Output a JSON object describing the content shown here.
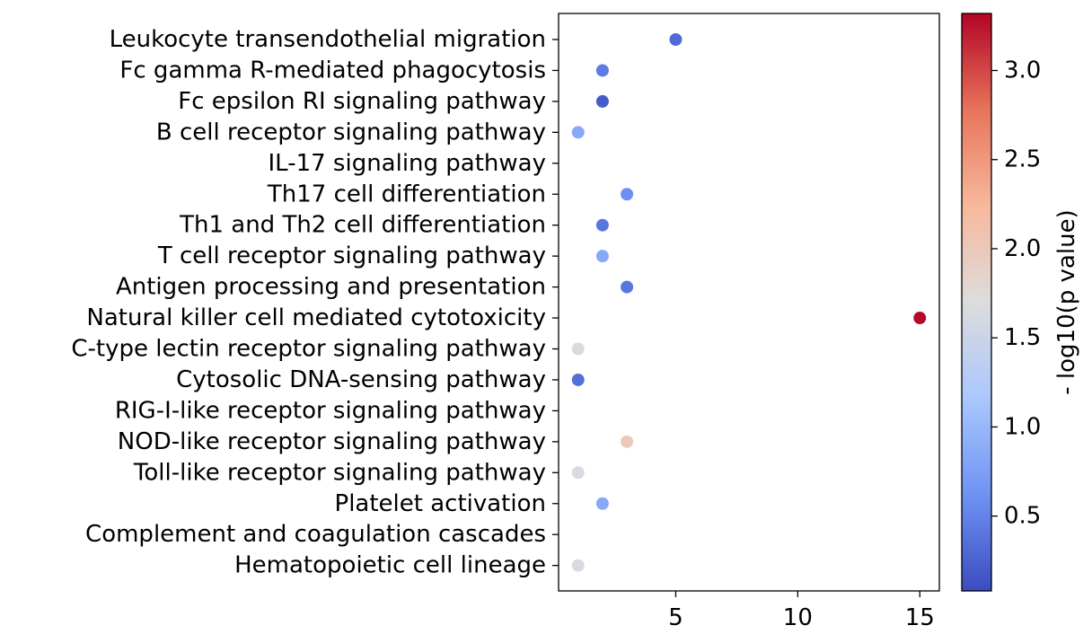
{
  "chart_data": {
    "type": "scatter",
    "title": "",
    "xlabel": "",
    "ylabel": "",
    "xlim": [
      0.2,
      15.8
    ],
    "xticks": [
      5,
      10,
      15
    ],
    "grid": false,
    "categories": [
      "Leukocyte transendothelial migration",
      "Fc gamma R-mediated phagocytosis",
      "Fc epsilon RI signaling pathway",
      "B cell receptor signaling pathway",
      "IL-17 signaling pathway",
      "Th17 cell differentiation",
      "Th1 and Th2 cell differentiation",
      "T cell receptor signaling pathway",
      "Antigen processing and presentation",
      "Natural killer cell mediated cytotoxicity",
      "C-type lectin receptor signaling pathway",
      "Cytosolic DNA-sensing pathway",
      "RIG-I-like receptor signaling pathway",
      "NOD-like receptor signaling pathway",
      "Toll-like receptor signaling pathway",
      "Platelet activation",
      "Complement and coagulation cascades",
      "Hematopoietic cell lineage"
    ],
    "points": [
      {
        "category": "Leukocyte transendothelial migration",
        "x": 5,
        "neg_log10_p": 0.3
      },
      {
        "category": "Fc gamma R-mediated phagocytosis",
        "x": 2,
        "neg_log10_p": 0.45
      },
      {
        "category": "Fc epsilon RI signaling pathway",
        "x": 2,
        "neg_log10_p": 0.2
      },
      {
        "category": "B cell receptor signaling pathway",
        "x": 1,
        "neg_log10_p": 0.85
      },
      {
        "category": "Th17 cell differentiation",
        "x": 3,
        "neg_log10_p": 0.6
      },
      {
        "category": "Th1 and Th2 cell differentiation",
        "x": 2,
        "neg_log10_p": 0.4
      },
      {
        "category": "T cell receptor signaling pathway",
        "x": 2,
        "neg_log10_p": 0.85
      },
      {
        "category": "Antigen processing and presentation",
        "x": 3,
        "neg_log10_p": 0.4
      },
      {
        "category": "Natural killer cell mediated cytotoxicity",
        "x": 15,
        "neg_log10_p": 3.3
      },
      {
        "category": "C-type lectin receptor signaling pathway",
        "x": 1,
        "neg_log10_p": 1.65
      },
      {
        "category": "Cytosolic DNA-sensing pathway",
        "x": 1,
        "neg_log10_p": 0.35
      },
      {
        "category": "NOD-like receptor signaling pathway",
        "x": 3,
        "neg_log10_p": 2.0
      },
      {
        "category": "Toll-like receptor signaling pathway",
        "x": 1,
        "neg_log10_p": 1.65
      },
      {
        "category": "Platelet activation",
        "x": 2,
        "neg_log10_p": 0.85
      },
      {
        "category": "Hematopoietic cell lineage",
        "x": 1,
        "neg_log10_p": 1.65
      }
    ],
    "colorbar": {
      "label": "- log10(p value)",
      "colormap": "coolwarm",
      "range": [
        0.08,
        3.32
      ],
      "ticks": [
        0.5,
        1.0,
        1.5,
        2.0,
        2.5,
        3.0
      ],
      "tick_labels": [
        "0.5",
        "1.0",
        "1.5",
        "2.0",
        "2.5",
        "3.0"
      ],
      "colors": [
        "#3b4cc0",
        "#6f92f3",
        "#aac7fd",
        "#dddcdc",
        "#f7b89c",
        "#e7745b",
        "#b40426"
      ]
    }
  }
}
